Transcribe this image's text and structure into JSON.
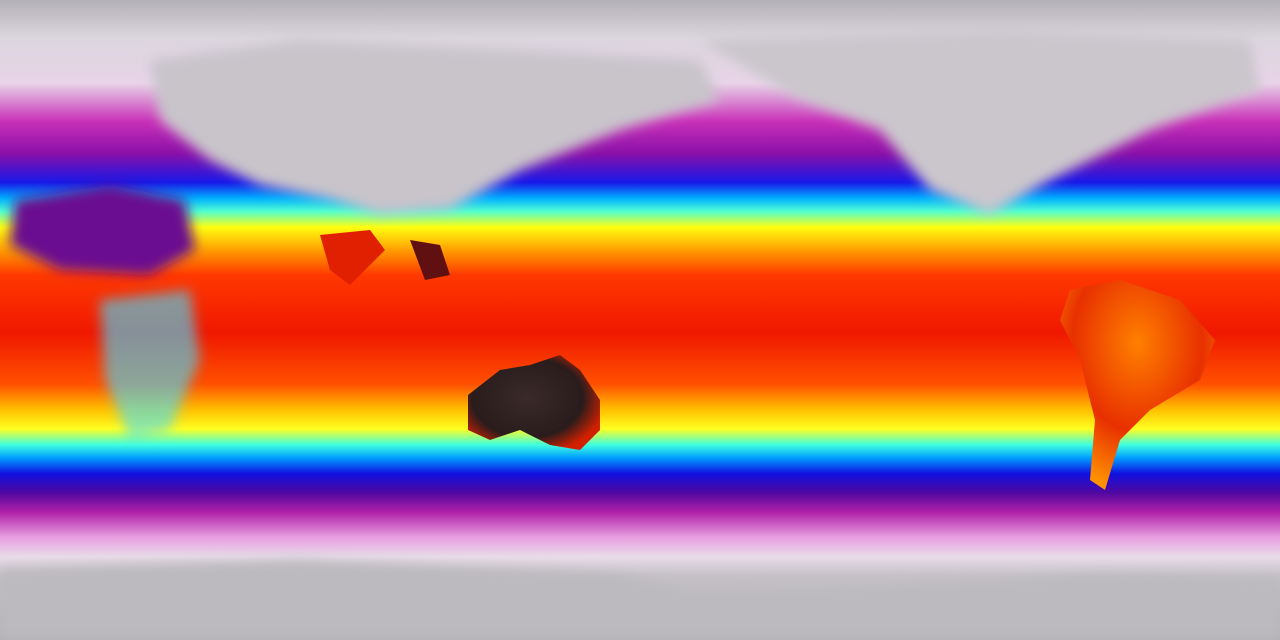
{
  "map": {
    "projection": "equirectangular",
    "field": "temperature",
    "colormap": [
      "#b0adb4",
      "#e8d8ea",
      "#c020b0",
      "#7a0aa0",
      "#1010e0",
      "#00aaff",
      "#40ffd0",
      "#ffff00",
      "#ffa000",
      "#ff3000",
      "#d80000"
    ],
    "land_colors": {
      "australia_hot_core": "#2a2020",
      "sahara": "#6a1090",
      "polar": "#b8b6bc"
    }
  }
}
